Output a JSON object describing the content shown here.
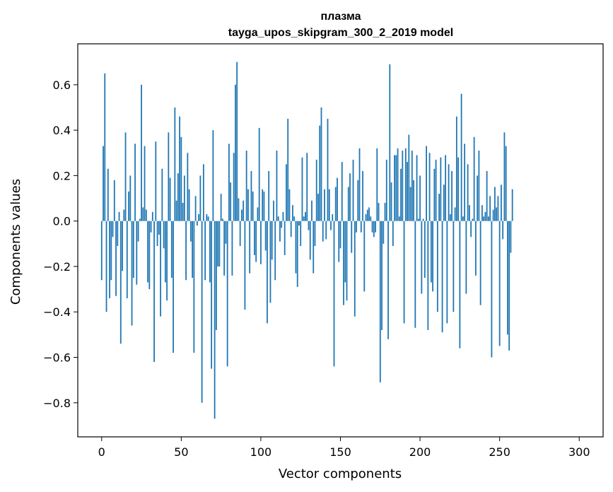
{
  "chart_data": {
    "type": "bar",
    "title": "плазма",
    "subtitle": "tayga_upos_skipgram_300_2_2019 model",
    "xlabel": "Vector components",
    "ylabel": "Components values",
    "xlim": [
      -15,
      315
    ],
    "ylim": [
      -0.95,
      0.78
    ],
    "x_ticks": [
      0,
      50,
      100,
      150,
      200,
      250,
      300
    ],
    "x_tick_labels": [
      "0",
      "50",
      "100",
      "150",
      "200",
      "250",
      "300"
    ],
    "y_ticks": [
      -0.8,
      -0.6,
      -0.4,
      -0.2,
      0.0,
      0.2,
      0.4,
      0.6
    ],
    "y_tick_labels": [
      "−0.8",
      "−0.6",
      "−0.4",
      "−0.2",
      "0.0",
      "0.2",
      "0.4",
      "0.6"
    ],
    "bar_color": "#1f77b4",
    "grid": false,
    "values": [
      -0.26,
      0.33,
      0.65,
      -0.4,
      0.23,
      -0.34,
      -0.26,
      -0.07,
      0.18,
      -0.33,
      -0.11,
      0.04,
      -0.54,
      -0.22,
      0.05,
      0.39,
      -0.34,
      0.13,
      0.2,
      -0.46,
      -0.25,
      0.34,
      -0.28,
      -0.09,
      0.01,
      0.6,
      0.06,
      0.33,
      0.05,
      -0.27,
      -0.3,
      -0.05,
      0.04,
      -0.62,
      0.35,
      -0.11,
      -0.06,
      -0.42,
      0.23,
      -0.12,
      -0.27,
      -0.35,
      0.39,
      0.19,
      -0.25,
      -0.58,
      0.5,
      0.09,
      0.21,
      0.46,
      0.37,
      0.08,
      0.2,
      -0.26,
      0.3,
      0.14,
      -0.09,
      -0.25,
      -0.58,
      0.11,
      -0.02,
      0.03,
      0.2,
      -0.8,
      0.25,
      -0.26,
      0.03,
      0.02,
      -0.27,
      -0.65,
      0.4,
      -0.87,
      -0.48,
      -0.2,
      -0.2,
      0.12,
      0.01,
      -0.24,
      -0.1,
      -0.64,
      0.34,
      0.17,
      -0.24,
      0.3,
      0.6,
      0.7,
      0.1,
      -0.11,
      0.05,
      0.09,
      -0.39,
      0.31,
      0.14,
      -0.23,
      0.22,
      0.13,
      -0.15,
      -0.18,
      0.06,
      0.41,
      -0.19,
      0.14,
      0.13,
      -0.13,
      -0.45,
      0.22,
      -0.36,
      -0.17,
      0.09,
      -0.26,
      0.31,
      0.02,
      -0.09,
      -0.03,
      0.04,
      -0.15,
      0.25,
      0.45,
      0.14,
      -0.07,
      0.07,
      0.02,
      -0.23,
      -0.29,
      -0.02,
      -0.11,
      0.28,
      0.02,
      0.04,
      0.3,
      -0.04,
      -0.17,
      0.09,
      -0.23,
      -0.11,
      0.27,
      0.12,
      0.42,
      0.5,
      -0.09,
      0.14,
      -0.08,
      0.45,
      0.14,
      -0.04,
      0.03,
      -0.64,
      0.15,
      0.19,
      -0.18,
      -0.12,
      0.26,
      -0.37,
      -0.27,
      -0.35,
      0.15,
      0.21,
      -0.14,
      0.27,
      -0.42,
      -0.05,
      0.18,
      0.32,
      -0.05,
      0.22,
      -0.31,
      0.03,
      0.05,
      0.06,
      0.02,
      -0.05,
      -0.07,
      -0.05,
      0.32,
      0.08,
      -0.71,
      -0.48,
      -0.1,
      0.08,
      0.27,
      -0.52,
      0.69,
      0.17,
      -0.11,
      0.29,
      0.29,
      0.32,
      0.02,
      0.23,
      0.31,
      -0.45,
      0.32,
      0.26,
      0.38,
      0.15,
      0.31,
      0.18,
      -0.47,
      0.29,
      0.01,
      0.2,
      -0.32,
      0.01,
      -0.25,
      0.33,
      -0.48,
      0.3,
      -0.27,
      -0.31,
      0.23,
      0.27,
      -0.4,
      0.12,
      0.28,
      -0.49,
      0.16,
      0.29,
      -0.45,
      0.25,
      0.03,
      0.22,
      -0.4,
      0.06,
      0.46,
      0.28,
      -0.56,
      0.56,
      0.02,
      0.34,
      -0.32,
      0.25,
      0.07,
      -0.07,
      0.01,
      0.37,
      -0.24,
      0.2,
      0.31,
      -0.37,
      0.07,
      0.02,
      0.04,
      0.22,
      0.02,
      0.11,
      -0.6,
      0.05,
      0.15,
      0.06,
      0.11,
      -0.55,
      0.16,
      -0.08,
      0.39,
      0.33,
      -0.5,
      -0.57,
      -0.14,
      0.14
    ]
  }
}
